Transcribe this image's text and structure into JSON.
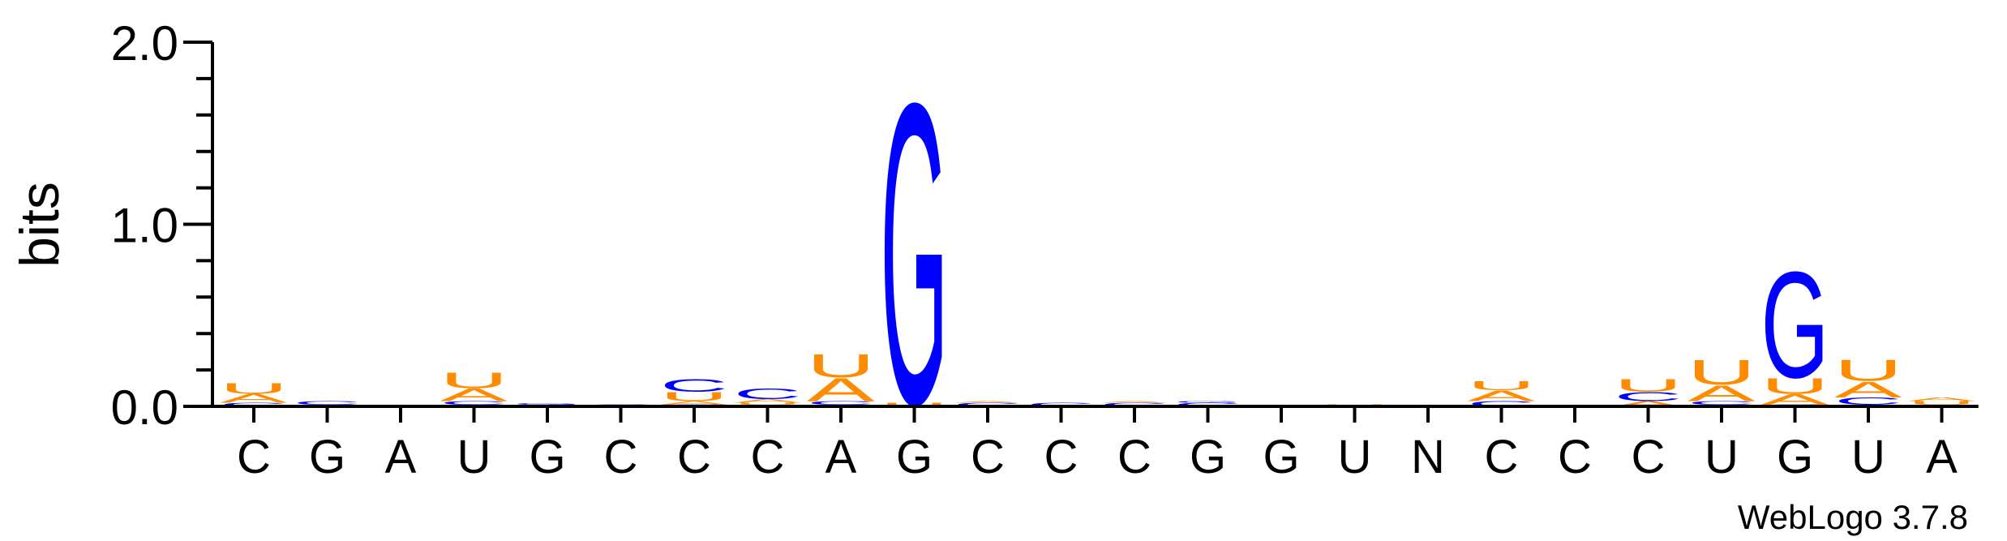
{
  "chart_data": {
    "type": "sequence-logo",
    "ylabel": "bits",
    "ylim": [
      0,
      2.0
    ],
    "yticks": [
      "0.0",
      "1.0",
      "2.0"
    ],
    "credit": "WebLogo 3.7.8",
    "colors": {
      "A": "#ff8c00",
      "U": "#ff8c00",
      "C": "#0000ff",
      "G": "#0000ff",
      "axis": "#000000"
    },
    "positions": [
      {
        "label": "C",
        "stack": [
          {
            "letter": "C",
            "bits": 0.02
          },
          {
            "letter": "A",
            "bits": 0.05
          },
          {
            "letter": "U",
            "bits": 0.06
          }
        ]
      },
      {
        "label": "G",
        "stack": [
          {
            "letter": "G",
            "bits": 0.01
          },
          {
            "letter": "C",
            "bits": 0.02
          }
        ]
      },
      {
        "label": "A",
        "stack": []
      },
      {
        "label": "U",
        "stack": [
          {
            "letter": "G",
            "bits": 0.01
          },
          {
            "letter": "C",
            "bits": 0.02
          },
          {
            "letter": "A",
            "bits": 0.07
          },
          {
            "letter": "U",
            "bits": 0.09
          }
        ]
      },
      {
        "label": "G",
        "stack": [
          {
            "letter": "C",
            "bits": 0.01
          },
          {
            "letter": "G",
            "bits": 0.01
          }
        ]
      },
      {
        "label": "C",
        "stack": [
          {
            "letter": "C",
            "bits": 0.01
          }
        ]
      },
      {
        "label": "C",
        "stack": [
          {
            "letter": "C",
            "bits": 0.01
          },
          {
            "letter": "A",
            "bits": 0.02
          },
          {
            "letter": "U",
            "bits": 0.05
          },
          {
            "letter": "C",
            "bits": 0.07
          }
        ]
      },
      {
        "label": "C",
        "stack": [
          {
            "letter": "G",
            "bits": 0.01
          },
          {
            "letter": "U",
            "bits": 0.01
          },
          {
            "letter": "A",
            "bits": 0.02
          },
          {
            "letter": "C",
            "bits": 0.06
          }
        ]
      },
      {
        "label": "A",
        "stack": [
          {
            "letter": "G",
            "bits": 0.01
          },
          {
            "letter": "C",
            "bits": 0.02
          },
          {
            "letter": "A",
            "bits": 0.13
          },
          {
            "letter": "U",
            "bits": 0.13
          }
        ]
      },
      {
        "label": "G",
        "stack": [
          {
            "letter": "U",
            "bits": 0.02
          },
          {
            "letter": "G",
            "bits": 1.7
          }
        ]
      },
      {
        "label": "C",
        "stack": [
          {
            "letter": "C",
            "bits": 0.02
          },
          {
            "letter": "A",
            "bits": 0.01
          }
        ]
      },
      {
        "label": "C",
        "stack": [
          {
            "letter": "C",
            "bits": 0.02
          }
        ]
      },
      {
        "label": "C",
        "stack": [
          {
            "letter": "C",
            "bits": 0.02
          },
          {
            "letter": "A",
            "bits": 0.01
          }
        ]
      },
      {
        "label": "G",
        "stack": [
          {
            "letter": "C",
            "bits": 0.02
          },
          {
            "letter": "G",
            "bits": 0.01
          }
        ]
      },
      {
        "label": "G",
        "stack": [
          {
            "letter": "G",
            "bits": 0.01
          }
        ]
      },
      {
        "label": "U",
        "stack": [
          {
            "letter": "U",
            "bits": 0.01
          }
        ]
      },
      {
        "label": "N",
        "stack": []
      },
      {
        "label": "C",
        "stack": [
          {
            "letter": "C",
            "bits": 0.03
          },
          {
            "letter": "A",
            "bits": 0.06
          },
          {
            "letter": "U",
            "bits": 0.05
          }
        ]
      },
      {
        "label": "C",
        "stack": []
      },
      {
        "label": "C",
        "stack": [
          {
            "letter": "A",
            "bits": 0.03
          },
          {
            "letter": "C",
            "bits": 0.05
          },
          {
            "letter": "U",
            "bits": 0.07
          }
        ]
      },
      {
        "label": "U",
        "stack": [
          {
            "letter": "G",
            "bits": 0.01
          },
          {
            "letter": "C",
            "bits": 0.02
          },
          {
            "letter": "A",
            "bits": 0.09
          },
          {
            "letter": "U",
            "bits": 0.14
          }
        ]
      },
      {
        "label": "G",
        "stack": [
          {
            "letter": "C",
            "bits": 0.01
          },
          {
            "letter": "A",
            "bits": 0.06
          },
          {
            "letter": "U",
            "bits": 0.09
          },
          {
            "letter": "G",
            "bits": 0.6
          }
        ]
      },
      {
        "label": "U",
        "stack": [
          {
            "letter": "G",
            "bits": 0.01
          },
          {
            "letter": "C",
            "bits": 0.04
          },
          {
            "letter": "A",
            "bits": 0.09
          },
          {
            "letter": "U",
            "bits": 0.12
          }
        ]
      },
      {
        "label": "A",
        "stack": [
          {
            "letter": "G",
            "bits": 0.01
          },
          {
            "letter": "U",
            "bits": 0.02
          },
          {
            "letter": "A",
            "bits": 0.02
          }
        ]
      }
    ]
  }
}
